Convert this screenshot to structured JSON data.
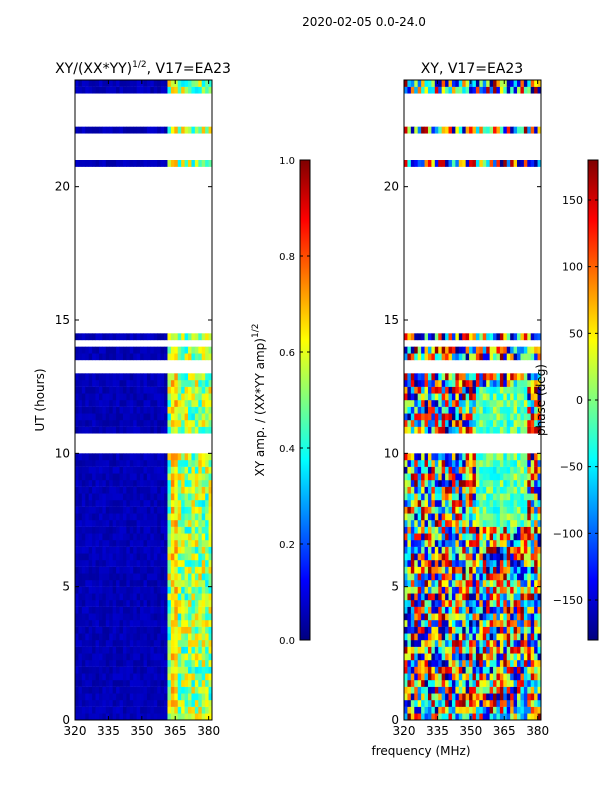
{
  "figure_title": "2020-02-05 0.0-24.0",
  "colors": {
    "background": "#ffffff",
    "jet": [
      "#00007f",
      "#0000ff",
      "#007fff",
      "#00ffff",
      "#7fff7f",
      "#ffff00",
      "#ff7f00",
      "#ff0000",
      "#7f0000"
    ]
  },
  "chart_data": [
    {
      "type": "heatmap",
      "title_main": "XY/(XX*YY)",
      "title_sup": "1/2",
      "title_rest": ", V17=EA23",
      "ylabel": "UT (hours)",
      "xlim": [
        320,
        381.5
      ],
      "ylim": [
        0,
        24
      ],
      "xticks": [
        320,
        335,
        350,
        365,
        380
      ],
      "yticks": [
        0,
        5,
        10,
        15,
        20
      ],
      "gaps_hours": [
        [
          0.9,
          1.05
        ],
        [
          1.15,
          1.25
        ],
        [
          1.4,
          1.45
        ],
        [
          2.8,
          2.85
        ],
        [
          2.9,
          2.95
        ],
        [
          3.0,
          3.1
        ],
        [
          4.4,
          4.45
        ],
        [
          4.8,
          4.85
        ],
        [
          6.7,
          6.8
        ],
        [
          6.95,
          7.0
        ],
        [
          7.15,
          7.2
        ],
        [
          7.3,
          7.35
        ],
        [
          7.5,
          7.6
        ],
        [
          8.4,
          8.5
        ],
        [
          8.8,
          8.85
        ],
        [
          9.0,
          9.1
        ],
        [
          9.55,
          9.6
        ],
        [
          10.1,
          10.15
        ],
        [
          10.35,
          10.4
        ],
        [
          10.6,
          10.65
        ],
        [
          11.9,
          11.95
        ],
        [
          12.5,
          12.55
        ],
        [
          12.9,
          12.95
        ],
        [
          13.1,
          13.15
        ],
        [
          13.35,
          13.4
        ],
        [
          13.5,
          13.55
        ],
        [
          13.7,
          13.75
        ],
        [
          14.1,
          14.15
        ],
        [
          14.45,
          20.8
        ],
        [
          20.95,
          21.9
        ],
        [
          22.25,
          22.4
        ],
        [
          22.6,
          23.15
        ],
        [
          23.3,
          23.4
        ],
        [
          23.65,
          23.7
        ]
      ],
      "colorbar": {
        "label_main": "XY amp. / (XX*YY amp)",
        "label_sup": "1/2",
        "min": 0.0,
        "max": 1.0,
        "ticks": [
          "0.0",
          "0.2",
          "0.4",
          "0.6",
          "0.8",
          "1.0"
        ]
      }
    },
    {
      "type": "heatmap",
      "title": "XY, V17=EA23",
      "xlabel": "frequency (MHz)",
      "xlim": [
        320,
        381.5
      ],
      "ylim": [
        0,
        24
      ],
      "xticks": [
        320,
        335,
        350,
        365,
        380
      ],
      "yticks": [
        0,
        5,
        10,
        15,
        20
      ],
      "colorbar": {
        "label": "phase (deg)",
        "min": -180,
        "max": 180,
        "ticks": [
          "−150",
          "−100",
          "−50",
          "0",
          "50",
          "100",
          "150"
        ],
        "tick_values": [
          -150,
          -100,
          -50,
          0,
          50,
          100,
          150
        ]
      }
    }
  ]
}
